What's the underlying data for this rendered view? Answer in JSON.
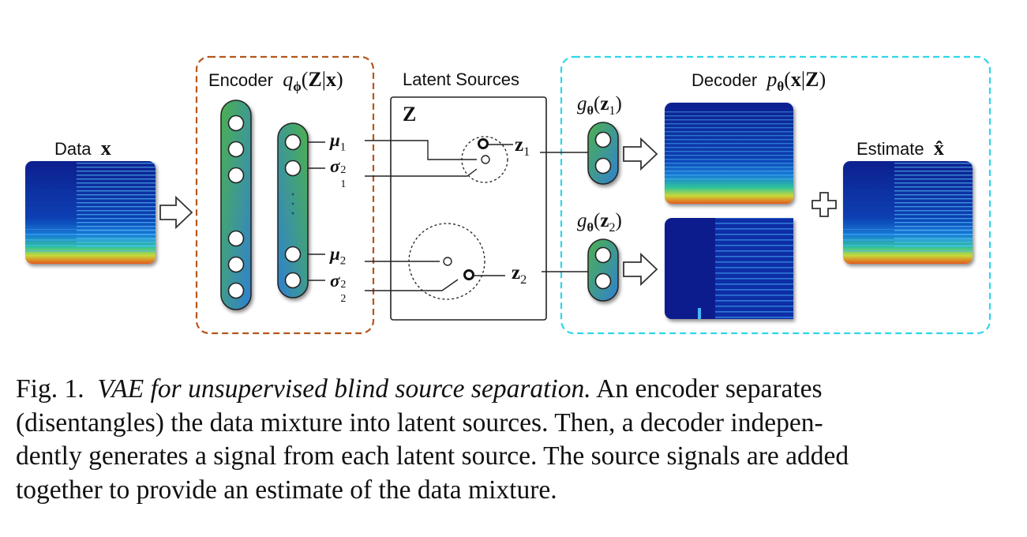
{
  "labels": {
    "data": "Data",
    "data_var": "x",
    "encoder": "Encoder",
    "encoder_q": "q",
    "encoder_sub": "ϕ",
    "encoder_arg_open": "(",
    "encoder_arg_Z": "Z",
    "encoder_arg_sep": "|",
    "encoder_arg_x": "x",
    "encoder_arg_close": ")",
    "latent_sources": "Latent Sources",
    "latent_Z": "Z",
    "decoder": "Decoder",
    "decoder_p": "p",
    "decoder_sub": "θ",
    "decoder_arg_open": "(",
    "decoder_arg_x": "x",
    "decoder_arg_sep": "|",
    "decoder_arg_Z": "Z",
    "decoder_arg_close": ")",
    "estimate": "Estimate",
    "estimate_var": "x̂",
    "mu1": "μ",
    "mu1_sub": "1",
    "sigma1": "σ",
    "sigma1_sub": "1",
    "sigma1_sup": "2",
    "mu2": "μ",
    "mu2_sub": "2",
    "sigma2": "σ",
    "sigma2_sub": "2",
    "sigma2_sup": "2",
    "z1": "z",
    "z1_sub": "1",
    "z2": "z",
    "z2_sub": "2",
    "g1": "g",
    "g1_sub": "θ",
    "g1_arg_open": "(",
    "g1_arg": "z",
    "g1_arg_sub": "1",
    "g1_arg_close": ")",
    "g2": "g",
    "g2_sub": "θ",
    "g2_arg_open": "(",
    "g2_arg": "z",
    "g2_arg_sub": "2",
    "g2_arg_close": ")"
  },
  "caption": {
    "fig": "Fig. 1.",
    "title": "VAE for unsupervised blind source separation.",
    "line1_rest": "An encoder separates",
    "line2": "(disentangles) the data mixture into latent sources. Then, a decoder indepen-",
    "line3": "dently generates a signal from each latent source. The source signals are added",
    "line4": "together to provide an estimate of the data mixture."
  },
  "colors": {
    "encoder_border": "#b5561a",
    "decoder_border": "#2fd6ea",
    "node_fill_green": "#4fa64a",
    "node_fill_blue": "#3a86c8",
    "spectrogram_base": "#0a1a8c"
  }
}
